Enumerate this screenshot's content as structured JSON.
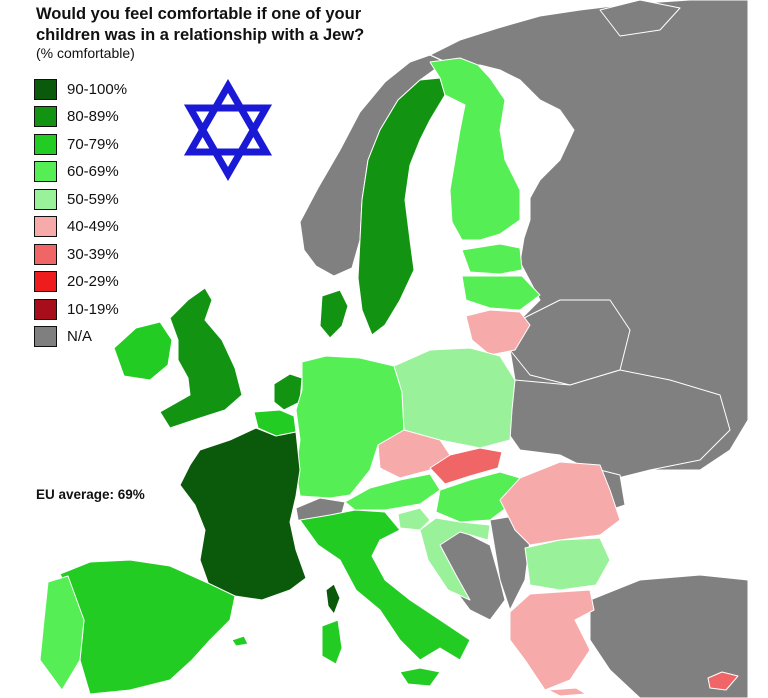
{
  "title": "Would you feel comfortable if one of your children was in a relationship with a Jew?",
  "subtitle": "(% comfortable)",
  "eu_average": "EU average: 69%",
  "legend": [
    {
      "label": "90-100%",
      "color": "#0b5a0b"
    },
    {
      "label": "80-89%",
      "color": "#129412"
    },
    {
      "label": "70-79%",
      "color": "#22cc22"
    },
    {
      "label": "60-69%",
      "color": "#55ee55"
    },
    {
      "label": "50-59%",
      "color": "#99f299"
    },
    {
      "label": "40-49%",
      "color": "#f6aaaa"
    },
    {
      "label": "30-39%",
      "color": "#f06666"
    },
    {
      "label": "20-29%",
      "color": "#ee1c1c"
    },
    {
      "label": "10-19%",
      "color": "#a80d1c"
    },
    {
      "label": "N/A",
      "color": "#7f7f7f"
    }
  ],
  "colors": {
    "non_data": "#808080",
    "sea": "#ffffff",
    "border": "#ffffff",
    "star": "#1a1ad6"
  },
  "icons": {
    "star": "star-of-david-icon"
  }
}
